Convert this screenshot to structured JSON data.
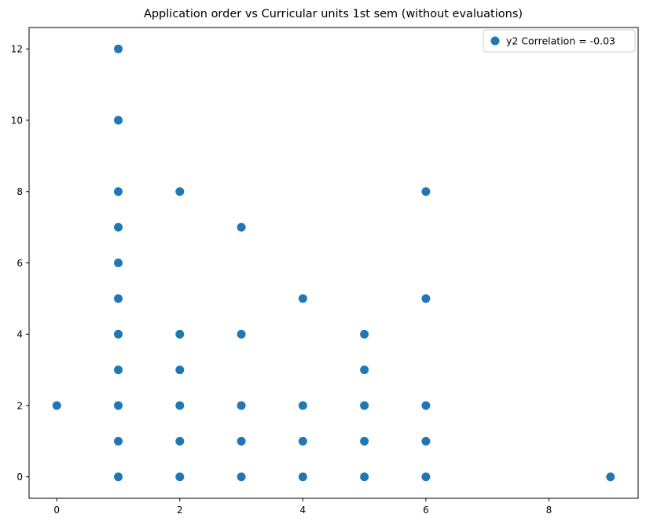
{
  "chart_data": {
    "type": "scatter",
    "title": "Application order vs Curricular units 1st sem (without evaluations)",
    "xlabel": "",
    "ylabel": "",
    "xlim": [
      -0.45,
      9.45
    ],
    "ylim": [
      -0.6,
      12.6
    ],
    "xticks": [
      0,
      2,
      4,
      6,
      8
    ],
    "yticks": [
      0,
      2,
      4,
      6,
      8,
      10,
      12
    ],
    "grid": false,
    "legend": {
      "placement": "top-right",
      "entries": [
        "y2 Correlation = -0.03"
      ]
    },
    "series": [
      {
        "name": "y2 Correlation = -0.03",
        "color": "#1f77b4",
        "points": [
          [
            0,
            2
          ],
          [
            1,
            0
          ],
          [
            1,
            1
          ],
          [
            1,
            2
          ],
          [
            1,
            3
          ],
          [
            1,
            4
          ],
          [
            1,
            5
          ],
          [
            1,
            6
          ],
          [
            1,
            7
          ],
          [
            1,
            8
          ],
          [
            1,
            10
          ],
          [
            1,
            12
          ],
          [
            2,
            0
          ],
          [
            2,
            1
          ],
          [
            2,
            2
          ],
          [
            2,
            3
          ],
          [
            2,
            4
          ],
          [
            2,
            8
          ],
          [
            3,
            0
          ],
          [
            3,
            1
          ],
          [
            3,
            2
          ],
          [
            3,
            4
          ],
          [
            3,
            7
          ],
          [
            4,
            0
          ],
          [
            4,
            1
          ],
          [
            4,
            2
          ],
          [
            4,
            5
          ],
          [
            5,
            0
          ],
          [
            5,
            1
          ],
          [
            5,
            2
          ],
          [
            5,
            3
          ],
          [
            5,
            4
          ],
          [
            6,
            0
          ],
          [
            6,
            1
          ],
          [
            6,
            2
          ],
          [
            6,
            5
          ],
          [
            6,
            8
          ],
          [
            9,
            0
          ]
        ]
      }
    ]
  }
}
